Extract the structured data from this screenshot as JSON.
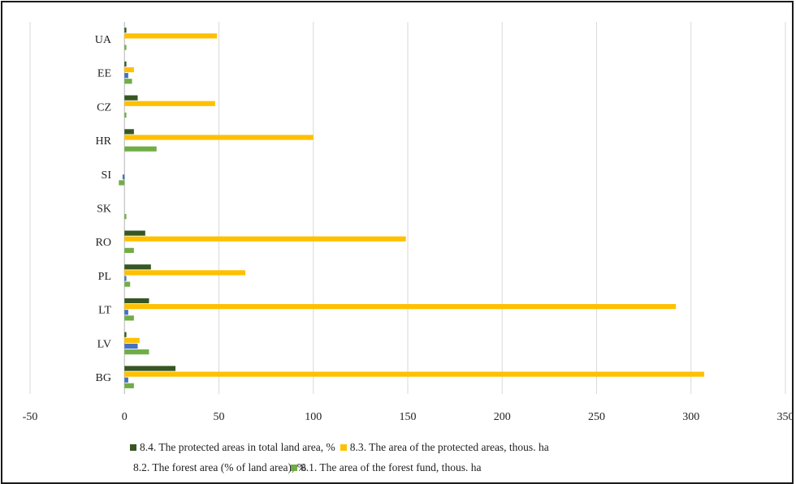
{
  "chart_data": {
    "type": "bar",
    "orientation": "horizontal",
    "categories": [
      "UA",
      "EE",
      "CZ",
      "HR",
      "SI",
      "SK",
      "RO",
      "PL",
      "LT",
      "LV",
      "BG"
    ],
    "series": [
      {
        "name": "8.4. The protected areas in total land area, %",
        "color": "#375623",
        "values": [
          1,
          1,
          7,
          5,
          0,
          0,
          11,
          14,
          13,
          1,
          27
        ]
      },
      {
        "name": "8.3. The area of the protected areas, thous. ha",
        "color": "#FFC000",
        "values": [
          49,
          5,
          48,
          100,
          0,
          0,
          149,
          64,
          292,
          8,
          307
        ]
      },
      {
        "name": "8.2. The forest area (% of land area), %",
        "color": "#4472C4",
        "values": [
          0,
          2,
          0,
          0,
          -1,
          0,
          0,
          1,
          2,
          7,
          2
        ]
      },
      {
        "name": "8.1. The area of the forest fund, thous. ha",
        "color": "#70AD47",
        "values": [
          1,
          4,
          1,
          17,
          -3,
          1,
          5,
          3,
          5,
          13,
          5
        ]
      }
    ],
    "xlim": [
      -50,
      350
    ],
    "xticks": [
      "-50",
      "0",
      "50",
      "100",
      "150",
      "200",
      "250",
      "300",
      "350"
    ],
    "grid": "vertical",
    "legend_position": "bottom"
  }
}
